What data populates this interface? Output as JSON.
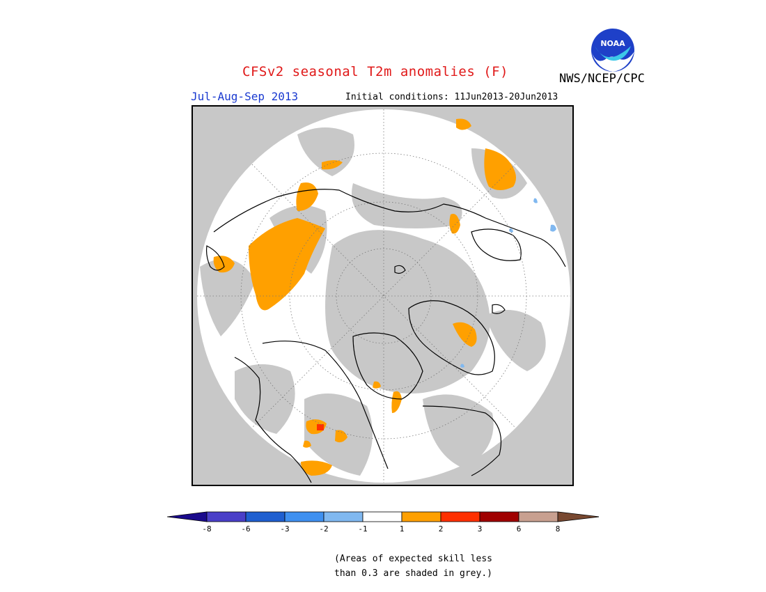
{
  "header": {
    "title": "CFSv2 seasonal T2m anomalies (F)",
    "period": "Jul-Aug-Sep 2013",
    "initial_conditions": "Initial conditions: 11Jun2013-20Jun2013",
    "agency": "NWS/NCEP/CPC",
    "logo_text": "NOAA"
  },
  "map": {
    "projection": "north-polar-stereographic",
    "background_color": "#c8c8c8",
    "circle_color": "#ffffff",
    "coastline_color": "#000000"
  },
  "colorbar": {
    "tick_labels": [
      "-8",
      "-6",
      "-3",
      "-2",
      "-1",
      "1",
      "2",
      "3",
      "6",
      "8"
    ],
    "colors": [
      "#1a0a8c",
      "#4a3fc8",
      "#1f5fd0",
      "#3f90f0",
      "#80b8f0",
      "#ffffff",
      "#ffa000",
      "#ff3000",
      "#a00000",
      "#c8a090",
      "#784830"
    ]
  },
  "note": {
    "line1": "(Areas of expected skill less",
    "line2": "than 0.3 are shaded in grey.)"
  }
}
